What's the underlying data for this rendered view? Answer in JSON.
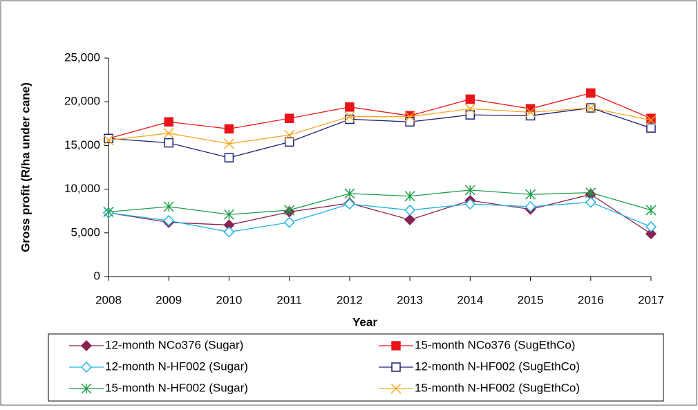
{
  "chart_data": {
    "type": "line",
    "x_label": "Year",
    "y_label": "Gross profit (R/ha under cane)",
    "x": [
      2008,
      2009,
      2010,
      2011,
      2012,
      2013,
      2014,
      2015,
      2016,
      2017
    ],
    "xlim": [
      2008,
      2017
    ],
    "ylim": [
      0,
      25000
    ],
    "yticks": [
      0,
      {
        "value": 5000,
        "label": "5,000"
      },
      {
        "value": 10000,
        "label": "10,000"
      },
      {
        "value": 15000,
        "label": "15,000"
      },
      {
        "value": 20000,
        "label": "20,000"
      },
      {
        "value": 25000,
        "label": "25,000"
      }
    ],
    "series": [
      {
        "name": "12-month NCo376 (Sugar)",
        "color": "#8b2252",
        "marker": "diamond",
        "values": [
          7300,
          6200,
          5900,
          7400,
          8400,
          6500,
          8700,
          7700,
          9400,
          4900
        ]
      },
      {
        "name": "15-month NCo376 (SugEthCo)",
        "color": "#e8141a",
        "marker": "square",
        "values": [
          15800,
          17700,
          16900,
          18100,
          19400,
          18400,
          20300,
          19200,
          21000,
          18100
        ]
      },
      {
        "name": "12-month N-HF002 (Sugar)",
        "color": "#1fb3e6",
        "marker": "diamond-open",
        "values": [
          7300,
          6400,
          5100,
          6200,
          8300,
          7600,
          8300,
          8000,
          8500,
          5700
        ]
      },
      {
        "name": "12-month N-HF002 (SugEthCo)",
        "color": "#1c1f78",
        "marker": "square-open",
        "values": [
          15800,
          15300,
          13600,
          15400,
          18000,
          17700,
          18500,
          18400,
          19300,
          17000
        ]
      },
      {
        "name": "15-month N-HF002 (Sugar)",
        "color": "#1f9e4a",
        "marker": "asterisk",
        "values": [
          7400,
          8000,
          7100,
          7600,
          9500,
          9200,
          9900,
          9400,
          9600,
          7600
        ]
      },
      {
        "name": "15-month N-HF002 (SugEthCo)",
        "color": "#f5a623",
        "marker": "x",
        "values": [
          15600,
          16400,
          15200,
          16200,
          18300,
          18300,
          19200,
          18800,
          19300,
          17900
        ]
      }
    ]
  }
}
